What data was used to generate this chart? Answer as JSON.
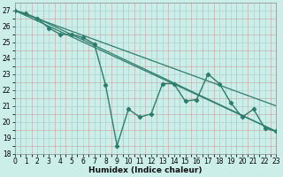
{
  "x": [
    0,
    1,
    2,
    3,
    4,
    5,
    6,
    7,
    8,
    9,
    10,
    11,
    12,
    13,
    14,
    15,
    16,
    17,
    18,
    19,
    20,
    21,
    22,
    23
  ],
  "y_main": [
    27.0,
    26.8,
    26.5,
    25.9,
    25.5,
    25.5,
    25.3,
    24.9,
    22.3,
    18.5,
    20.8,
    20.3,
    20.5,
    22.4,
    22.4,
    21.3,
    21.4,
    23.0,
    22.4,
    21.2,
    20.3,
    20.8,
    19.6,
    19.4
  ],
  "trend1_x0": 0,
  "trend1_y0": 27.0,
  "trend1_x1": 23,
  "trend1_y1": 19.4,
  "trend2_x0": 0,
  "trend2_y0": 27.0,
  "trend2_x1": 23,
  "trend2_y1": 21.0,
  "trend3_x0": 2,
  "trend3_y0": 26.5,
  "trend3_x1": 23,
  "trend3_y1": 19.4,
  "color": "#2d7d6e",
  "bg_color": "#cceee8",
  "grid_major_color": "#aad4ce",
  "grid_minor_color": "#dbb0b0",
  "xlabel": "Humidex (Indice chaleur)",
  "xlim": [
    0,
    23
  ],
  "ylim": [
    18,
    27.5
  ],
  "yticks": [
    18,
    19,
    20,
    21,
    22,
    23,
    24,
    25,
    26,
    27
  ],
  "xticks": [
    0,
    1,
    2,
    3,
    4,
    5,
    6,
    7,
    8,
    9,
    10,
    11,
    12,
    13,
    14,
    15,
    16,
    17,
    18,
    19,
    20,
    21,
    22,
    23
  ]
}
